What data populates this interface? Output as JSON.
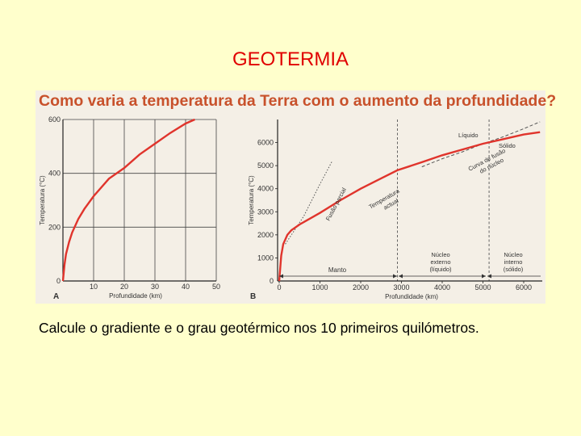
{
  "slide": {
    "title": "GEOTERMIA",
    "question": "Calcule o gradiente e o grau geotérmico nos 10 primeiros quilómetros."
  },
  "figure": {
    "heading": "Como varia a temperatura da Terra com o aumento da profundidade?",
    "background_color": "#f4efe6",
    "curve_color": "#e0342c"
  },
  "chart_data": [
    {
      "type": "line",
      "panel_label": "A",
      "xlabel": "Profundidade (km)",
      "ylabel": "Temperatura (°C)",
      "xlim": [
        0,
        50
      ],
      "ylim": [
        0,
        600
      ],
      "x_ticks": [
        "10",
        "20",
        "30",
        "40",
        "50"
      ],
      "y_ticks": [
        "0",
        "200",
        "400",
        "600"
      ],
      "grid": true,
      "series": [
        {
          "x": [
            0,
            0.5,
            1,
            2,
            3,
            5,
            7,
            10,
            15,
            20,
            25,
            30,
            35,
            40,
            43
          ],
          "y": [
            0,
            60,
            100,
            145,
            180,
            230,
            268,
            315,
            380,
            420,
            470,
            510,
            550,
            585,
            600
          ]
        }
      ]
    },
    {
      "type": "line",
      "panel_label": "B",
      "xlabel": "Profundidade (km)",
      "ylabel": "Temperatura (°C)",
      "xlim": [
        0,
        6500
      ],
      "ylim": [
        0,
        7000
      ],
      "x_ticks": [
        "0",
        "1000",
        "2000",
        "3000",
        "4000",
        "5000",
        "6000"
      ],
      "y_ticks": [
        "1000",
        "2000",
        "3000",
        "4000",
        "5000",
        "6000"
      ],
      "grid": false,
      "series": [
        {
          "label": "Temperatura actual",
          "x": [
            0,
            50,
            100,
            200,
            300,
            500,
            700,
            1000,
            1500,
            2000,
            2500,
            2900,
            3500,
            4000,
            4500,
            5000,
            5500,
            6000,
            6400
          ],
          "y": [
            0,
            1100,
            1600,
            2000,
            2200,
            2450,
            2650,
            2950,
            3500,
            4000,
            4450,
            4800,
            5150,
            5450,
            5700,
            5950,
            6150,
            6350,
            6450
          ]
        },
        {
          "label": "Fusão parcial",
          "style": "dotted",
          "x": [
            150,
            600,
            1000,
            1300
          ],
          "y": [
            1600,
            2800,
            4200,
            5200
          ]
        },
        {
          "label": "Curva de fusão do núcleo",
          "style": "dashed",
          "x": [
            3500,
            4000,
            4500,
            5000,
            5500,
            6000,
            6400
          ],
          "y": [
            4950,
            5300,
            5600,
            5950,
            6250,
            6600,
            6900
          ]
        }
      ],
      "boundaries_km": [
        2900,
        5150
      ],
      "annotations": {
        "manto": "Manto",
        "nucleo_externo": [
          "Núcleo",
          "externo",
          "(líquido)"
        ],
        "nucleo_interno": [
          "Núcleo",
          "interno",
          "(sólido)"
        ],
        "liquido": "Líquido",
        "solido": "Sólido",
        "fusao_parcial": "Fusão parcial",
        "temperatura_actual": [
          "Temperatura",
          "actual"
        ],
        "curva_fusao": [
          "Curva de fusão",
          "do núcleo"
        ]
      }
    }
  ]
}
